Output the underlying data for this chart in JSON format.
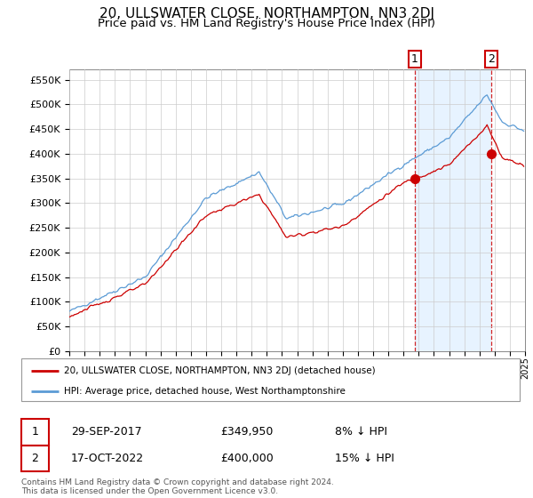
{
  "title": "20, ULLSWATER CLOSE, NORTHAMPTON, NN3 2DJ",
  "subtitle": "Price paid vs. HM Land Registry's House Price Index (HPI)",
  "title_fontsize": 11,
  "subtitle_fontsize": 9.5,
  "hpi_color": "#5b9bd5",
  "hpi_fill_color": "#ddeeff",
  "price_color": "#cc0000",
  "background_color": "#ffffff",
  "plot_bg_color": "#ffffff",
  "grid_color": "#cccccc",
  "ylim": [
    0,
    570000
  ],
  "yticks": [
    0,
    50000,
    100000,
    150000,
    200000,
    250000,
    300000,
    350000,
    400000,
    450000,
    500000,
    550000
  ],
  "sale1_year": 2017.75,
  "sale1_price": 349950,
  "sale1_label": "1",
  "sale1_date": "29-SEP-2017",
  "sale1_pct": "8% ↓ HPI",
  "sale2_year": 2022.79,
  "sale2_price": 400000,
  "sale2_label": "2",
  "sale2_date": "17-OCT-2022",
  "sale2_pct": "15% ↓ HPI",
  "legend_price_label": "20, ULLSWATER CLOSE, NORTHAMPTON, NN3 2DJ (detached house)",
  "legend_hpi_label": "HPI: Average price, detached house, West Northamptonshire",
  "footer": "Contains HM Land Registry data © Crown copyright and database right 2024.\nThis data is licensed under the Open Government Licence v3.0.",
  "xmin": 1995,
  "xmax": 2025
}
